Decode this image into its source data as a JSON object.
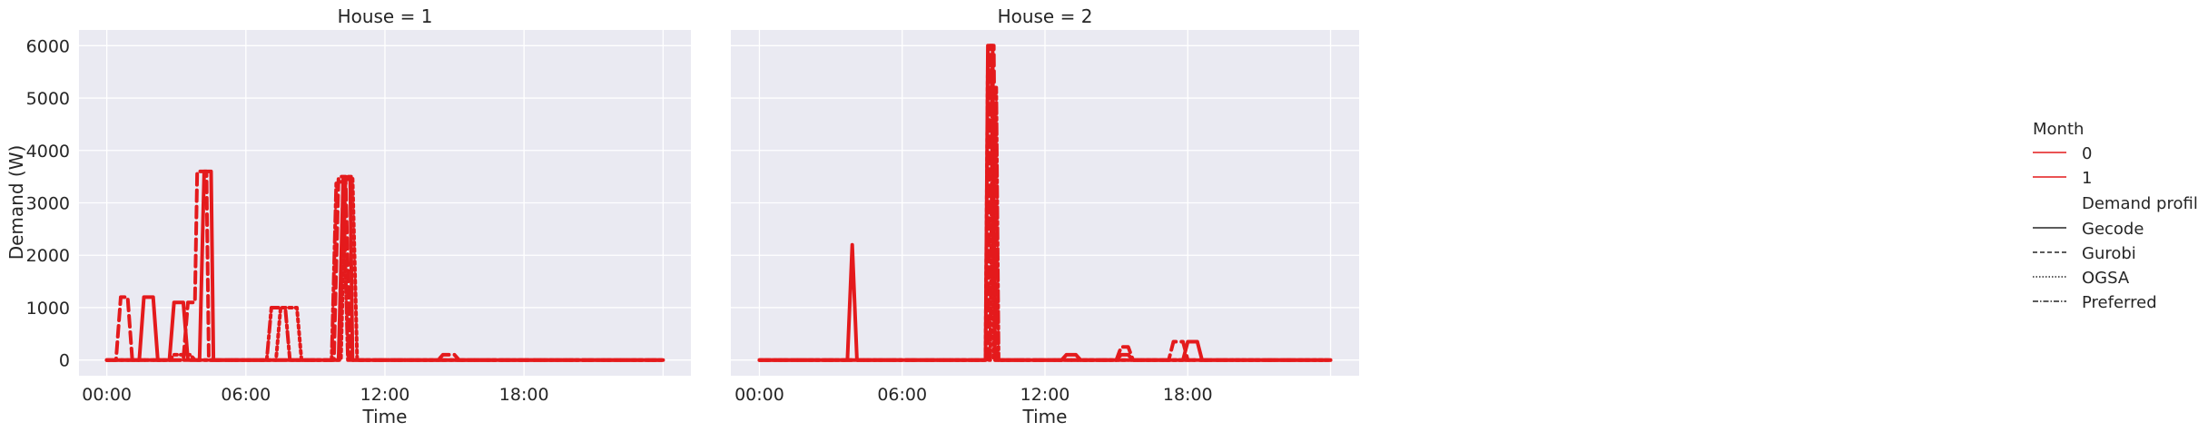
{
  "chart_data": {
    "type": "line",
    "ylabel": "Demand (W)",
    "xlabel": "Time",
    "ylim": [
      -300,
      6300
    ],
    "xlim": [
      -1.2,
      25.2
    ],
    "yticks": [
      0,
      1000,
      2000,
      3000,
      4000,
      5000,
      6000
    ],
    "xticks": [
      {
        "hour": 0,
        "label": "00:00"
      },
      {
        "hour": 6,
        "label": "06:00"
      },
      {
        "hour": 12,
        "label": "12:00"
      },
      {
        "hour": 18,
        "label": "18:00"
      }
    ],
    "series_color": "#e41a1c",
    "panels": [
      {
        "title": "House = 1",
        "series": [
          {
            "month": "0",
            "profile": "Gecode",
            "points": [
              [
                0,
                0
              ],
              [
                1.4,
                0
              ],
              [
                1.6,
                1200
              ],
              [
                2.0,
                1200
              ],
              [
                2.2,
                0
              ],
              [
                2.7,
                0
              ],
              [
                2.9,
                1100
              ],
              [
                3.3,
                1100
              ],
              [
                3.5,
                0
              ],
              [
                4.0,
                0
              ],
              [
                4.2,
                3600
              ],
              [
                4.5,
                3600
              ],
              [
                4.6,
                0
              ],
              [
                10.0,
                0
              ],
              [
                10.2,
                3450
              ],
              [
                10.5,
                3450
              ],
              [
                10.6,
                0
              ],
              [
                24,
                0
              ]
            ]
          },
          {
            "month": "0",
            "profile": "Gurobi",
            "points": [
              [
                0,
                0
              ],
              [
                0.4,
                0
              ],
              [
                0.6,
                1200
              ],
              [
                0.9,
                1200
              ],
              [
                1.1,
                0
              ],
              [
                3.3,
                0
              ],
              [
                3.5,
                1100
              ],
              [
                3.8,
                1100
              ],
              [
                3.9,
                3600
              ],
              [
                4.3,
                3600
              ],
              [
                4.4,
                0
              ],
              [
                9.8,
                0
              ],
              [
                10.0,
                3500
              ],
              [
                10.3,
                3500
              ],
              [
                10.5,
                0
              ],
              [
                14.3,
                0
              ],
              [
                14.5,
                100
              ],
              [
                15.0,
                100
              ],
              [
                15.2,
                0
              ],
              [
                24,
                0
              ]
            ]
          },
          {
            "month": "0",
            "profile": "OGSA",
            "points": [
              [
                0,
                0
              ],
              [
                2.7,
                0
              ],
              [
                2.9,
                100
              ],
              [
                3.6,
                100
              ],
              [
                3.8,
                0
              ],
              [
                7.3,
                0
              ],
              [
                7.5,
                1000
              ],
              [
                8.2,
                1000
              ],
              [
                8.4,
                0
              ],
              [
                10.1,
                0
              ],
              [
                10.3,
                3500
              ],
              [
                10.6,
                3500
              ],
              [
                10.8,
                0
              ],
              [
                24,
                0
              ]
            ]
          },
          {
            "month": "0",
            "profile": "Preferred",
            "points": [
              [
                0,
                0
              ],
              [
                6.9,
                0
              ],
              [
                7.1,
                1000
              ],
              [
                7.7,
                1000
              ],
              [
                7.9,
                0
              ],
              [
                9.7,
                0
              ],
              [
                9.9,
                3400
              ],
              [
                10.2,
                3400
              ],
              [
                10.4,
                0
              ],
              [
                24,
                0
              ]
            ]
          }
        ]
      },
      {
        "title": "House = 2",
        "series": [
          {
            "month": "0",
            "profile": "Gecode",
            "points": [
              [
                0,
                0
              ],
              [
                3.7,
                0
              ],
              [
                3.9,
                2200
              ],
              [
                4.1,
                0
              ],
              [
                9.5,
                0
              ],
              [
                9.6,
                6000
              ],
              [
                9.8,
                6000
              ],
              [
                9.9,
                0
              ],
              [
                12.7,
                0
              ],
              [
                12.9,
                100
              ],
              [
                13.3,
                100
              ],
              [
                13.5,
                0
              ],
              [
                15.0,
                0
              ],
              [
                15.2,
                100
              ],
              [
                15.5,
                100
              ],
              [
                15.7,
                0
              ],
              [
                17.8,
                0
              ],
              [
                18.0,
                350
              ],
              [
                18.4,
                350
              ],
              [
                18.6,
                0
              ],
              [
                24,
                0
              ]
            ]
          },
          {
            "month": "0",
            "profile": "Gurobi",
            "points": [
              [
                0,
                0
              ],
              [
                9.6,
                0
              ],
              [
                9.7,
                6000
              ],
              [
                9.85,
                6000
              ],
              [
                9.95,
                0
              ],
              [
                15.0,
                0
              ],
              [
                15.2,
                250
              ],
              [
                15.5,
                250
              ],
              [
                15.7,
                0
              ],
              [
                17.2,
                0
              ],
              [
                17.4,
                350
              ],
              [
                17.8,
                350
              ],
              [
                18.0,
                0
              ],
              [
                24,
                0
              ]
            ]
          },
          {
            "month": "0",
            "profile": "OGSA",
            "points": [
              [
                0,
                0
              ],
              [
                9.5,
                0
              ],
              [
                9.6,
                5800
              ],
              [
                9.75,
                5800
              ],
              [
                9.85,
                0
              ],
              [
                24,
                0
              ]
            ]
          },
          {
            "month": "0",
            "profile": "Preferred",
            "points": [
              [
                0,
                0
              ],
              [
                9.7,
                0
              ],
              [
                9.8,
                5200
              ],
              [
                9.95,
                5200
              ],
              [
                10.05,
                0
              ],
              [
                24,
                0
              ]
            ]
          }
        ]
      }
    ],
    "legend": {
      "placement": "right",
      "hue_title": "Month",
      "hue_entries": [
        "0",
        "1"
      ],
      "style_title": "Demand profile",
      "style_entries": [
        "Gecode",
        "Gurobi",
        "OGSA",
        "Preferred"
      ]
    }
  }
}
